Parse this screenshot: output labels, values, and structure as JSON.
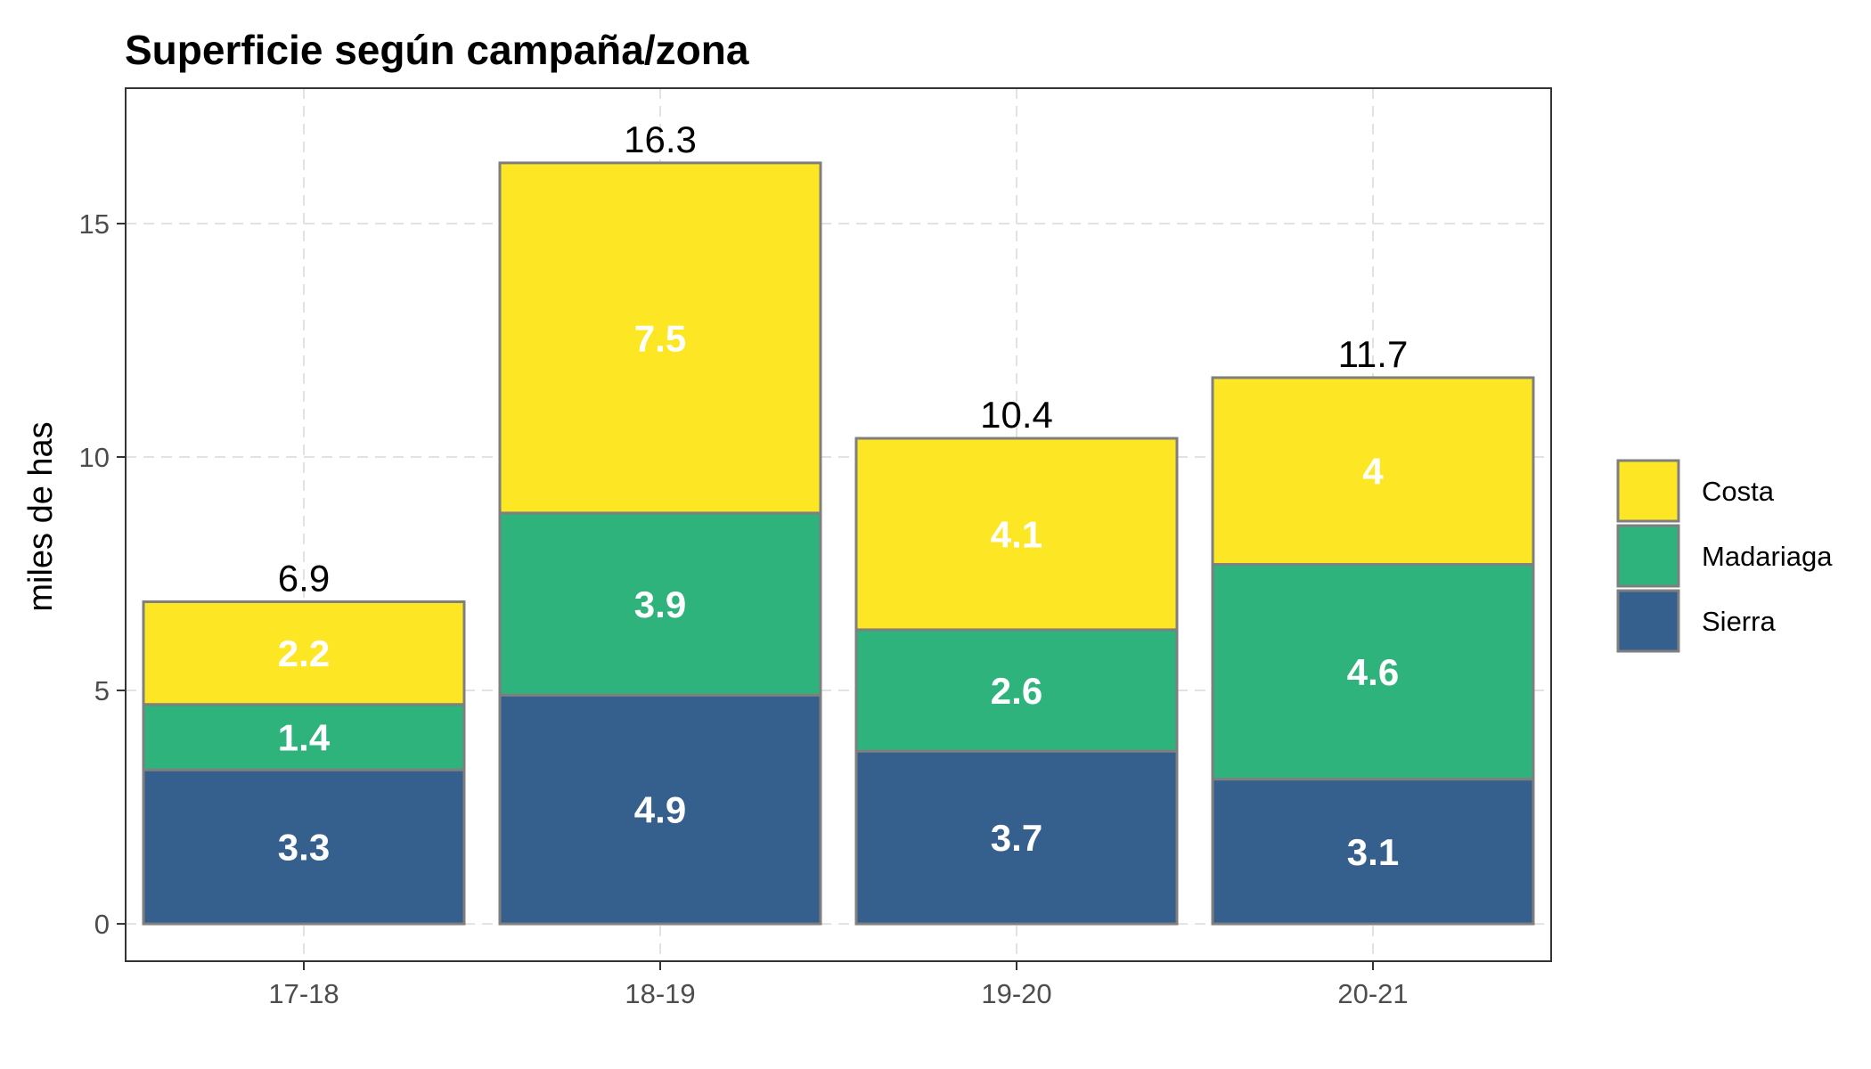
{
  "chart_data": {
    "type": "bar",
    "stacked": true,
    "title": "Superficie según campaña/zona",
    "xlabel": "",
    "ylabel": "miles de has",
    "categories": [
      "17-18",
      "18-19",
      "19-20",
      "20-21"
    ],
    "series": [
      {
        "name": "Sierra",
        "color": "#355f8d",
        "values": [
          3.3,
          4.9,
          3.7,
          3.1
        ]
      },
      {
        "name": "Madariaga",
        "color": "#2eb37c",
        "values": [
          1.4,
          3.9,
          2.6,
          4.6
        ]
      },
      {
        "name": "Costa",
        "color": "#fde725",
        "values": [
          2.2,
          7.5,
          4.1,
          4
        ]
      }
    ],
    "totals": [
      6.9,
      16.3,
      10.4,
      11.7
    ],
    "ylim": [
      -0.8,
      17.9
    ],
    "yticks": [
      0,
      5,
      10,
      15
    ],
    "grid": true,
    "legend_position": "right",
    "legend_order": [
      "Costa",
      "Madariaga",
      "Sierra"
    ]
  },
  "colors": {
    "bar_outline": "#7f7f7f",
    "grid": "#d9d9d9",
    "panel_border": "#333333"
  }
}
